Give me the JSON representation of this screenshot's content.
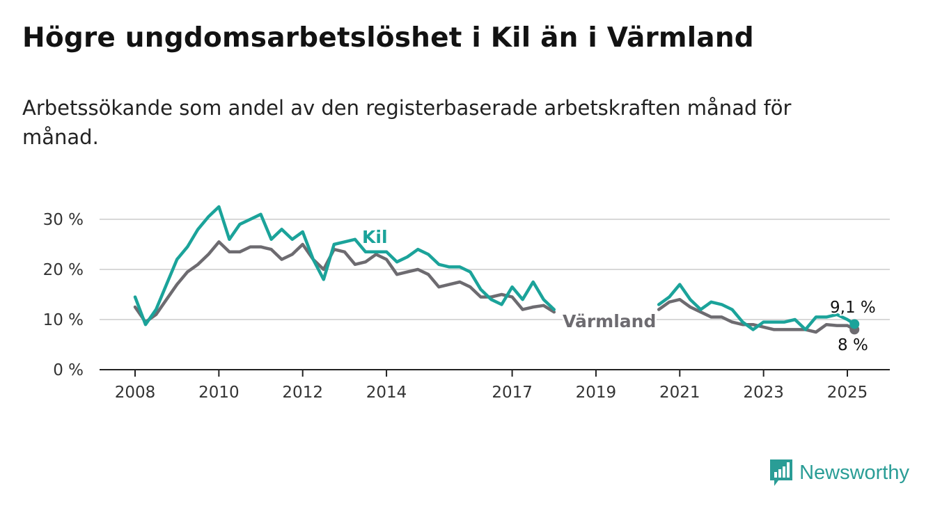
{
  "title": "Högre ungdomsarbetslöshet i Kil än i Värmland",
  "subtitle": "Arbetssökande som andel av den registerbaserade arbetskraften månad för månad.",
  "brand": {
    "name": "Newsworthy",
    "color": "#2a9d96"
  },
  "chart_data": {
    "type": "line",
    "ylim": [
      0,
      33
    ],
    "yticks": [
      0,
      10,
      20,
      30
    ],
    "ytick_labels": [
      "0 %",
      "10 %",
      "20 %",
      "30 %"
    ],
    "xlim": [
      2008,
      2026
    ],
    "xticks": [
      2008,
      2010,
      2012,
      2014,
      2017,
      2019,
      2021,
      2023,
      2025
    ],
    "xtick_labels": [
      "2008",
      "2010",
      "2012",
      "2014",
      "2017",
      "2019",
      "2021",
      "2023",
      "2025"
    ],
    "grid": true,
    "series": [
      {
        "name": "Värmland",
        "color": "#6d6b70",
        "end_label": "8 %",
        "points": [
          [
            2008.0,
            12.5
          ],
          [
            2008.25,
            9.5
          ],
          [
            2008.5,
            11
          ],
          [
            2008.75,
            14
          ],
          [
            2009.0,
            17
          ],
          [
            2009.25,
            19.5
          ],
          [
            2009.5,
            21
          ],
          [
            2009.75,
            23
          ],
          [
            2010.0,
            25.5
          ],
          [
            2010.25,
            23.5
          ],
          [
            2010.5,
            23.5
          ],
          [
            2010.75,
            24.5
          ],
          [
            2011.0,
            24.5
          ],
          [
            2011.25,
            24
          ],
          [
            2011.5,
            22
          ],
          [
            2011.75,
            23
          ],
          [
            2012.0,
            25
          ],
          [
            2012.25,
            22
          ],
          [
            2012.5,
            20
          ],
          [
            2012.75,
            24
          ],
          [
            2013.0,
            23.5
          ],
          [
            2013.25,
            21
          ],
          [
            2013.5,
            21.5
          ],
          [
            2013.75,
            23
          ],
          [
            2014.0,
            22
          ],
          [
            2014.25,
            19
          ],
          [
            2014.5,
            19.5
          ],
          [
            2014.75,
            20
          ],
          [
            2015.0,
            19
          ],
          [
            2015.25,
            16.5
          ],
          [
            2015.5,
            17
          ],
          [
            2015.75,
            17.5
          ],
          [
            2016.0,
            16.5
          ],
          [
            2016.25,
            14.5
          ],
          [
            2016.5,
            14.5
          ],
          [
            2016.75,
            15
          ],
          [
            2017.0,
            14.5
          ],
          [
            2017.25,
            12
          ],
          [
            2017.5,
            12.5
          ],
          [
            2017.75,
            12.8
          ],
          [
            2018.0,
            11.5
          ],
          [
            2020.5,
            12
          ],
          [
            2020.75,
            13.5
          ],
          [
            2021.0,
            14
          ],
          [
            2021.25,
            12.5
          ],
          [
            2021.5,
            11.5
          ],
          [
            2021.75,
            10.5
          ],
          [
            2022.0,
            10.5
          ],
          [
            2022.25,
            9.5
          ],
          [
            2022.5,
            9
          ],
          [
            2022.75,
            9
          ],
          [
            2023.0,
            8.5
          ],
          [
            2023.25,
            8
          ],
          [
            2023.5,
            8
          ],
          [
            2023.75,
            8
          ],
          [
            2024.0,
            8
          ],
          [
            2024.25,
            7.5
          ],
          [
            2024.5,
            9
          ],
          [
            2024.75,
            8.8
          ],
          [
            2025.0,
            8.8
          ],
          [
            2025.17,
            8.0
          ]
        ]
      },
      {
        "name": "Kil",
        "color": "#1ba39a",
        "end_label": "9,1 %",
        "points": [
          [
            2008.0,
            14.5
          ],
          [
            2008.25,
            9
          ],
          [
            2008.5,
            12
          ],
          [
            2008.75,
            17
          ],
          [
            2009.0,
            22
          ],
          [
            2009.25,
            24.5
          ],
          [
            2009.5,
            28
          ],
          [
            2009.75,
            30.5
          ],
          [
            2010.0,
            32.5
          ],
          [
            2010.25,
            26
          ],
          [
            2010.5,
            29
          ],
          [
            2010.75,
            30
          ],
          [
            2011.0,
            31
          ],
          [
            2011.25,
            26
          ],
          [
            2011.5,
            28
          ],
          [
            2011.75,
            26
          ],
          [
            2012.0,
            27.5
          ],
          [
            2012.25,
            22
          ],
          [
            2012.5,
            18
          ],
          [
            2012.75,
            25
          ],
          [
            2013.0,
            25.5
          ],
          [
            2013.25,
            26
          ],
          [
            2013.5,
            23.5
          ],
          [
            2014.0,
            23.5
          ],
          [
            2014.25,
            21.5
          ],
          [
            2014.5,
            22.5
          ],
          [
            2014.75,
            24
          ],
          [
            2015.0,
            23
          ],
          [
            2015.25,
            21
          ],
          [
            2015.5,
            20.5
          ],
          [
            2015.75,
            20.5
          ],
          [
            2016.0,
            19.5
          ],
          [
            2016.25,
            16
          ],
          [
            2016.5,
            14
          ],
          [
            2016.75,
            13
          ],
          [
            2017.0,
            16.5
          ],
          [
            2017.25,
            14
          ],
          [
            2017.5,
            17.5
          ],
          [
            2017.75,
            14
          ],
          [
            2018.0,
            12
          ],
          [
            2020.5,
            13
          ],
          [
            2020.75,
            14.5
          ],
          [
            2021.0,
            17
          ],
          [
            2021.25,
            14
          ],
          [
            2021.5,
            12
          ],
          [
            2021.75,
            13.5
          ],
          [
            2022.0,
            13
          ],
          [
            2022.25,
            12
          ],
          [
            2022.5,
            9.5
          ],
          [
            2022.75,
            8
          ],
          [
            2023.0,
            9.5
          ],
          [
            2023.25,
            9.5
          ],
          [
            2023.5,
            9.5
          ],
          [
            2023.75,
            10
          ],
          [
            2024.0,
            8
          ],
          [
            2024.25,
            10.5
          ],
          [
            2024.5,
            10.5
          ],
          [
            2024.75,
            11
          ],
          [
            2025.0,
            10
          ],
          [
            2025.17,
            9.1
          ]
        ]
      }
    ]
  }
}
